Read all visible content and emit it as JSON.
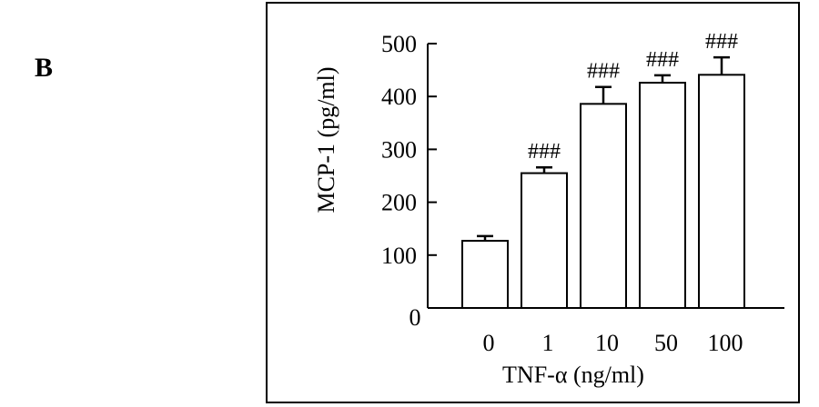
{
  "panel_label": "B",
  "chart_data": {
    "type": "bar",
    "categories": [
      "0",
      "1",
      "10",
      "50",
      "100"
    ],
    "values": [
      127,
      255,
      386,
      426,
      441
    ],
    "errors": [
      9,
      11,
      32,
      14,
      33
    ],
    "annotations": [
      "",
      "###",
      "###",
      "###",
      "###"
    ],
    "ylabel": "MCP-1 (pg/ml)",
    "xlabel": "TNF-α (ng/ml)",
    "ylim": [
      0,
      500
    ],
    "yticks": [
      0,
      100,
      200,
      300,
      400,
      500
    ],
    "bar_color": "#ffffff",
    "edge_color": "#000000",
    "grid": false
  }
}
